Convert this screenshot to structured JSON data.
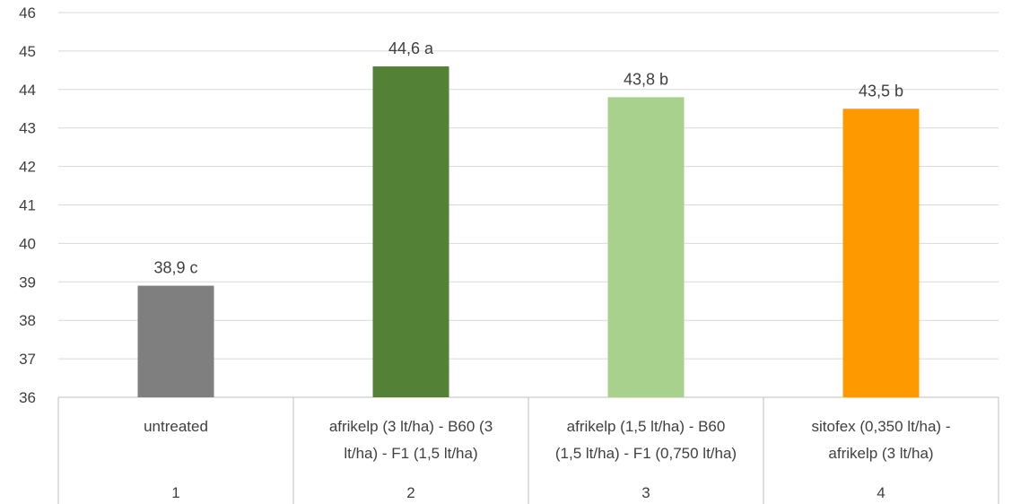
{
  "chart_data": {
    "type": "bar",
    "title": "",
    "xlabel": "",
    "ylabel": "",
    "ylim": [
      36,
      46
    ],
    "yticks": [
      36,
      37,
      38,
      39,
      40,
      41,
      42,
      43,
      44,
      45,
      46
    ],
    "grid": true,
    "legend": "none",
    "categories": [
      {
        "number": "1",
        "treatment_lines": [
          "untreated"
        ]
      },
      {
        "number": "2",
        "treatment_lines": [
          "afrikelp (3 lt/ha)  - B60 (3",
          "lt/ha) - F1 (1,5 lt/ha)"
        ]
      },
      {
        "number": "3",
        "treatment_lines": [
          "afrikelp (1,5 lt/ha)  - B60",
          "(1,5 lt/ha) - F1 (0,750 lt/ha)"
        ]
      },
      {
        "number": "4",
        "treatment_lines": [
          "sitofex (0,350 lt/ha) -",
          "afrikelp (3 lt/ha)"
        ]
      }
    ],
    "values": [
      38.9,
      44.6,
      43.8,
      43.5
    ],
    "data_labels": [
      "38,9 c",
      "44,6 a",
      "43,8 b",
      "43,5 b"
    ],
    "colors": [
      "#7f7f7f",
      "#538135",
      "#a9d18e",
      "#ff9900"
    ]
  }
}
